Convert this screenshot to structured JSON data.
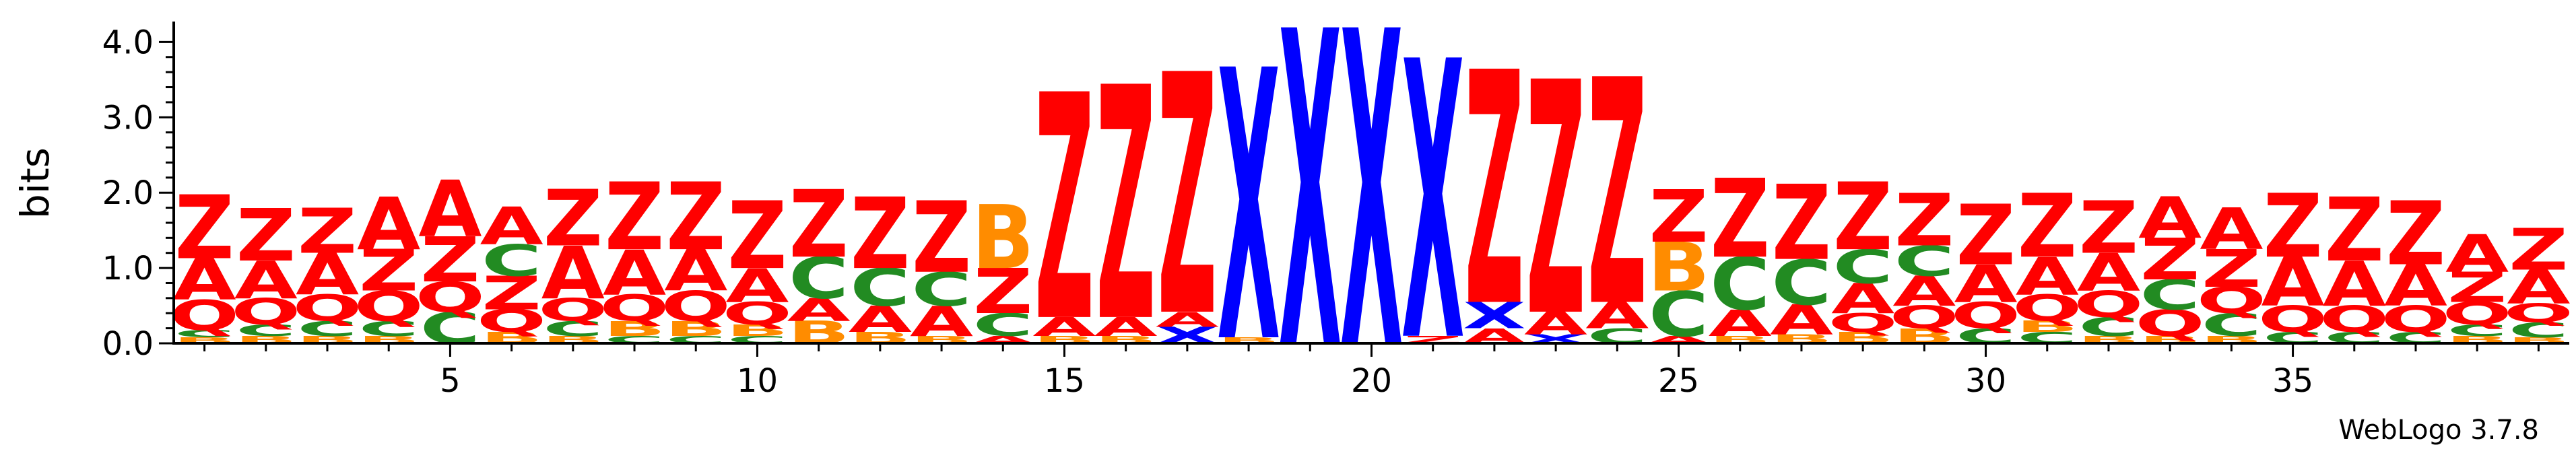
{
  "chart_data": {
    "type": "sequence_logo",
    "ylabel": "bits",
    "ylim": [
      0,
      4.2
    ],
    "yticks": [
      {
        "value": 0.0,
        "label": "0.0"
      },
      {
        "value": 1.0,
        "label": "1.0"
      },
      {
        "value": 2.0,
        "label": "2.0"
      },
      {
        "value": 3.0,
        "label": "3.0"
      },
      {
        "value": 4.0,
        "label": "4.0"
      }
    ],
    "xticks": [
      {
        "value": 5,
        "label": "5"
      },
      {
        "value": 10,
        "label": "10"
      },
      {
        "value": 15,
        "label": "15"
      },
      {
        "value": 20,
        "label": "20"
      },
      {
        "value": 25,
        "label": "25"
      },
      {
        "value": 30,
        "label": "30"
      },
      {
        "value": 35,
        "label": "35"
      }
    ],
    "xrange": [
      0.5,
      39.5
    ],
    "colors": {
      "Z": "#ff0000",
      "A": "#ff0000",
      "Q": "#ff0000",
      "C": "#228b22",
      "B": "#ff8c00",
      "X": "#0000ff"
    },
    "footer": "WebLogo 3.7.8",
    "positions": [
      {
        "pos": 1,
        "stack": [
          {
            "letter": "B",
            "height": 0.08
          },
          {
            "letter": "C",
            "height": 0.1
          },
          {
            "letter": "Q",
            "height": 0.4
          },
          {
            "letter": "A",
            "height": 0.55
          },
          {
            "letter": "Z",
            "height": 0.85
          }
        ]
      },
      {
        "pos": 2,
        "stack": [
          {
            "letter": "B",
            "height": 0.1
          },
          {
            "letter": "C",
            "height": 0.15
          },
          {
            "letter": "Q",
            "height": 0.35
          },
          {
            "letter": "A",
            "height": 0.5
          },
          {
            "letter": "Z",
            "height": 0.7
          }
        ]
      },
      {
        "pos": 3,
        "stack": [
          {
            "letter": "B",
            "height": 0.1
          },
          {
            "letter": "C",
            "height": 0.2
          },
          {
            "letter": "Q",
            "height": 0.35
          },
          {
            "letter": "A",
            "height": 0.55
          },
          {
            "letter": "Z",
            "height": 0.6
          }
        ]
      },
      {
        "pos": 4,
        "stack": [
          {
            "letter": "B",
            "height": 0.1
          },
          {
            "letter": "C",
            "height": 0.2
          },
          {
            "letter": "Q",
            "height": 0.4
          },
          {
            "letter": "Z",
            "height": 0.55
          },
          {
            "letter": "A",
            "height": 0.7
          }
        ]
      },
      {
        "pos": 5,
        "stack": [
          {
            "letter": "C",
            "height": 0.42
          },
          {
            "letter": "Q",
            "height": 0.4
          },
          {
            "letter": "Z",
            "height": 0.6
          },
          {
            "letter": "A",
            "height": 0.75
          }
        ]
      },
      {
        "pos": 6,
        "stack": [
          {
            "letter": "B",
            "height": 0.15
          },
          {
            "letter": "Q",
            "height": 0.3
          },
          {
            "letter": "Z",
            "height": 0.45
          },
          {
            "letter": "C",
            "height": 0.42
          },
          {
            "letter": "A",
            "height": 0.5
          }
        ]
      },
      {
        "pos": 7,
        "stack": [
          {
            "letter": "B",
            "height": 0.1
          },
          {
            "letter": "C",
            "height": 0.2
          },
          {
            "letter": "Q",
            "height": 0.3
          },
          {
            "letter": "A",
            "height": 0.7
          },
          {
            "letter": "Z",
            "height": 0.75
          }
        ]
      },
      {
        "pos": 8,
        "stack": [
          {
            "letter": "C",
            "height": 0.1
          },
          {
            "letter": "B",
            "height": 0.2
          },
          {
            "letter": "Q",
            "height": 0.35
          },
          {
            "letter": "A",
            "height": 0.6
          },
          {
            "letter": "Z",
            "height": 0.9
          }
        ]
      },
      {
        "pos": 9,
        "stack": [
          {
            "letter": "C",
            "height": 0.1
          },
          {
            "letter": "B",
            "height": 0.2
          },
          {
            "letter": "Q",
            "height": 0.4
          },
          {
            "letter": "A",
            "height": 0.55
          },
          {
            "letter": "Z",
            "height": 0.9
          }
        ]
      },
      {
        "pos": 10,
        "stack": [
          {
            "letter": "C",
            "height": 0.1
          },
          {
            "letter": "B",
            "height": 0.15
          },
          {
            "letter": "Q",
            "height": 0.3
          },
          {
            "letter": "A",
            "height": 0.45
          },
          {
            "letter": "Z",
            "height": 0.9
          }
        ]
      },
      {
        "pos": 11,
        "stack": [
          {
            "letter": "B",
            "height": 0.3
          },
          {
            "letter": "A",
            "height": 0.3
          },
          {
            "letter": "C",
            "height": 0.55
          },
          {
            "letter": "Z",
            "height": 0.9
          }
        ]
      },
      {
        "pos": 12,
        "stack": [
          {
            "letter": "B",
            "height": 0.15
          },
          {
            "letter": "A",
            "height": 0.35
          },
          {
            "letter": "C",
            "height": 0.5
          },
          {
            "letter": "Z",
            "height": 0.95
          }
        ]
      },
      {
        "pos": 13,
        "stack": [
          {
            "letter": "B",
            "height": 0.1
          },
          {
            "letter": "A",
            "height": 0.4
          },
          {
            "letter": "C",
            "height": 0.45
          },
          {
            "letter": "Z",
            "height": 0.95
          }
        ]
      },
      {
        "pos": 14,
        "stack": [
          {
            "letter": "A",
            "height": 0.1
          },
          {
            "letter": "C",
            "height": 0.3
          },
          {
            "letter": "Z",
            "height": 0.6
          },
          {
            "letter": "B",
            "height": 0.85
          }
        ]
      },
      {
        "pos": 15,
        "stack": [
          {
            "letter": "B",
            "height": 0.1
          },
          {
            "letter": "A",
            "height": 0.25
          },
          {
            "letter": "Z",
            "height": 3.0
          }
        ]
      },
      {
        "pos": 16,
        "stack": [
          {
            "letter": "B",
            "height": 0.1
          },
          {
            "letter": "A",
            "height": 0.25
          },
          {
            "letter": "Z",
            "height": 3.1
          }
        ]
      },
      {
        "pos": 17,
        "stack": [
          {
            "letter": "X",
            "height": 0.22
          },
          {
            "letter": "A",
            "height": 0.2
          },
          {
            "letter": "Z",
            "height": 3.2
          }
        ]
      },
      {
        "pos": 18,
        "stack": [
          {
            "letter": "B",
            "height": 0.08
          },
          {
            "letter": "X",
            "height": 3.6
          }
        ]
      },
      {
        "pos": 19,
        "stack": [
          {
            "letter": "X",
            "height": 4.2
          }
        ]
      },
      {
        "pos": 20,
        "stack": [
          {
            "letter": "X",
            "height": 4.2
          }
        ]
      },
      {
        "pos": 21,
        "stack": [
          {
            "letter": "Z",
            "height": 0.1
          },
          {
            "letter": "X",
            "height": 3.7
          }
        ]
      },
      {
        "pos": 22,
        "stack": [
          {
            "letter": "A",
            "height": 0.2
          },
          {
            "letter": "X",
            "height": 0.35
          },
          {
            "letter": "Z",
            "height": 3.1
          }
        ]
      },
      {
        "pos": 23,
        "stack": [
          {
            "letter": "X",
            "height": 0.12
          },
          {
            "letter": "A",
            "height": 0.3
          },
          {
            "letter": "Z",
            "height": 3.1
          }
        ]
      },
      {
        "pos": 24,
        "stack": [
          {
            "letter": "C",
            "height": 0.2
          },
          {
            "letter": "A",
            "height": 0.35
          },
          {
            "letter": "Z",
            "height": 3.0
          }
        ]
      },
      {
        "pos": 25,
        "stack": [
          {
            "letter": "A",
            "height": 0.1
          },
          {
            "letter": "C",
            "height": 0.6
          },
          {
            "letter": "B",
            "height": 0.65
          },
          {
            "letter": "Z",
            "height": 0.7
          }
        ]
      },
      {
        "pos": 26,
        "stack": [
          {
            "letter": "B",
            "height": 0.1
          },
          {
            "letter": "A",
            "height": 0.35
          },
          {
            "letter": "C",
            "height": 0.7
          },
          {
            "letter": "Z",
            "height": 1.05
          }
        ]
      },
      {
        "pos": 27,
        "stack": [
          {
            "letter": "B",
            "height": 0.12
          },
          {
            "letter": "A",
            "height": 0.4
          },
          {
            "letter": "C",
            "height": 0.6
          },
          {
            "letter": "Z",
            "height": 1.0
          }
        ]
      },
      {
        "pos": 28,
        "stack": [
          {
            "letter": "B",
            "height": 0.15
          },
          {
            "letter": "Q",
            "height": 0.25
          },
          {
            "letter": "A",
            "height": 0.4
          },
          {
            "letter": "C",
            "height": 0.45
          },
          {
            "letter": "Z",
            "height": 0.9
          }
        ]
      },
      {
        "pos": 29,
        "stack": [
          {
            "letter": "B",
            "height": 0.2
          },
          {
            "letter": "Q",
            "height": 0.3
          },
          {
            "letter": "A",
            "height": 0.4
          },
          {
            "letter": "C",
            "height": 0.4
          },
          {
            "letter": "Z",
            "height": 0.7
          }
        ]
      },
      {
        "pos": 30,
        "stack": [
          {
            "letter": "C",
            "height": 0.2
          },
          {
            "letter": "Q",
            "height": 0.35
          },
          {
            "letter": "A",
            "height": 0.5
          },
          {
            "letter": "Z",
            "height": 0.8
          }
        ]
      },
      {
        "pos": 31,
        "stack": [
          {
            "letter": "C",
            "height": 0.15
          },
          {
            "letter": "B",
            "height": 0.15
          },
          {
            "letter": "Q",
            "height": 0.35
          },
          {
            "letter": "A",
            "height": 0.5
          },
          {
            "letter": "Z",
            "height": 0.85
          }
        ]
      },
      {
        "pos": 32,
        "stack": [
          {
            "letter": "B",
            "height": 0.1
          },
          {
            "letter": "C",
            "height": 0.25
          },
          {
            "letter": "Q",
            "height": 0.35
          },
          {
            "letter": "A",
            "height": 0.5
          },
          {
            "letter": "Z",
            "height": 0.7
          }
        ]
      },
      {
        "pos": 33,
        "stack": [
          {
            "letter": "B",
            "height": 0.1
          },
          {
            "letter": "Q",
            "height": 0.35
          },
          {
            "letter": "C",
            "height": 0.4
          },
          {
            "letter": "Z",
            "height": 0.55
          },
          {
            "letter": "A",
            "height": 0.55
          }
        ]
      },
      {
        "pos": 34,
        "stack": [
          {
            "letter": "B",
            "height": 0.1
          },
          {
            "letter": "C",
            "height": 0.3
          },
          {
            "letter": "Q",
            "height": 0.35
          },
          {
            "letter": "Z",
            "height": 0.5
          },
          {
            "letter": "A",
            "height": 0.55
          }
        ]
      },
      {
        "pos": 35,
        "stack": [
          {
            "letter": "C",
            "height": 0.15
          },
          {
            "letter": "Q",
            "height": 0.35
          },
          {
            "letter": "A",
            "height": 0.65
          },
          {
            "letter": "Z",
            "height": 0.85
          }
        ]
      },
      {
        "pos": 36,
        "stack": [
          {
            "letter": "C",
            "height": 0.15
          },
          {
            "letter": "Q",
            "height": 0.35
          },
          {
            "letter": "A",
            "height": 0.6
          },
          {
            "letter": "Z",
            "height": 0.85
          }
        ]
      },
      {
        "pos": 37,
        "stack": [
          {
            "letter": "C",
            "height": 0.15
          },
          {
            "letter": "Q",
            "height": 0.35
          },
          {
            "letter": "A",
            "height": 0.55
          },
          {
            "letter": "Z",
            "height": 0.85
          }
        ]
      },
      {
        "pos": 38,
        "stack": [
          {
            "letter": "B",
            "height": 0.1
          },
          {
            "letter": "C",
            "height": 0.15
          },
          {
            "letter": "Q",
            "height": 0.3
          },
          {
            "letter": "Z",
            "height": 0.4
          },
          {
            "letter": "A",
            "height": 0.5
          }
        ]
      },
      {
        "pos": 39,
        "stack": [
          {
            "letter": "B",
            "height": 0.08
          },
          {
            "letter": "C",
            "height": 0.2
          },
          {
            "letter": "Q",
            "height": 0.25
          },
          {
            "letter": "A",
            "height": 0.45
          },
          {
            "letter": "Z",
            "height": 0.55
          }
        ]
      }
    ]
  }
}
